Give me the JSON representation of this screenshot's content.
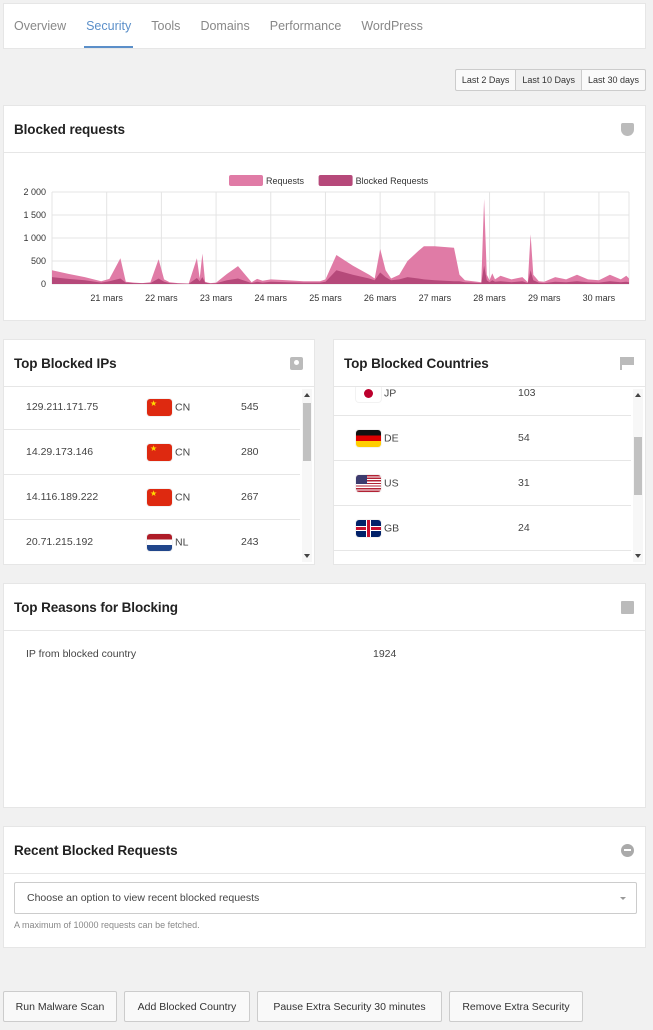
{
  "tabs": [
    {
      "label": "Overview",
      "active": false
    },
    {
      "label": "Security",
      "active": true
    },
    {
      "label": "Tools",
      "active": false
    },
    {
      "label": "Domains",
      "active": false
    },
    {
      "label": "Performance",
      "active": false
    },
    {
      "label": "WordPress",
      "active": false
    }
  ],
  "range": [
    "Last 2 Days",
    "Last 10 Days",
    "Last 30 days"
  ],
  "range_selected": "Last 10 Days",
  "blocked_requests": {
    "title": "Blocked requests",
    "icon": "shield-icon"
  },
  "chart_data": {
    "type": "area",
    "legend": [
      "Requests",
      "Blocked Requests"
    ],
    "legend_position": "top-center",
    "colors": {
      "Requests": "#e07ba6",
      "Blocked Requests": "#b6497a"
    },
    "ylim": [
      0,
      2000
    ],
    "y_ticks": [
      "2 000",
      "1 500",
      "1 000",
      "500",
      "0"
    ],
    "y_tick_values": [
      2000,
      1500,
      1000,
      500,
      0
    ],
    "x_tick_labels": [
      "21 mars",
      "22 mars",
      "23 mars",
      "24 mars",
      "25 mars",
      "26 mars",
      "27 mars",
      "28 mars",
      "29 mars",
      "30 mars"
    ],
    "x_range": [
      20.0,
      30.55
    ],
    "grid": true,
    "series": [
      {
        "name": "Requests",
        "x": [
          20.0,
          20.3,
          20.6,
          20.9,
          21.05,
          21.25,
          21.35,
          21.5,
          21.65,
          21.8,
          21.95,
          22.05,
          22.15,
          22.3,
          22.5,
          22.65,
          22.7,
          22.75,
          22.8,
          22.85,
          22.9,
          23.0,
          23.2,
          23.4,
          23.65,
          23.75,
          23.85,
          24.0,
          24.3,
          24.6,
          24.9,
          25.0,
          25.2,
          25.5,
          25.8,
          25.9,
          26.0,
          26.1,
          26.2,
          26.35,
          26.5,
          26.7,
          26.8,
          27.0,
          27.35,
          27.45,
          27.55,
          27.7,
          27.85,
          27.9,
          27.95,
          28.0,
          28.05,
          28.1,
          28.2,
          28.4,
          28.6,
          28.7,
          28.75,
          28.8,
          28.9,
          29.0,
          29.2,
          29.4,
          29.6,
          29.8,
          30.0,
          30.2,
          30.4,
          30.5,
          30.55
        ],
        "values": [
          300,
          220,
          150,
          60,
          110,
          560,
          50,
          30,
          20,
          40,
          540,
          100,
          40,
          20,
          10,
          560,
          120,
          660,
          50,
          30,
          20,
          30,
          220,
          390,
          40,
          110,
          70,
          100,
          80,
          60,
          60,
          100,
          630,
          400,
          200,
          120,
          760,
          300,
          120,
          200,
          500,
          720,
          820,
          820,
          790,
          200,
          80,
          60,
          40,
          1850,
          200,
          80,
          230,
          100,
          180,
          100,
          150,
          40,
          1080,
          200,
          60,
          50,
          150,
          100,
          200,
          100,
          80,
          200,
          100,
          180,
          120
        ]
      },
      {
        "name": "Blocked Requests",
        "x": [
          20.0,
          20.3,
          20.6,
          20.9,
          21.05,
          21.25,
          21.35,
          21.5,
          21.65,
          21.8,
          21.95,
          22.05,
          22.15,
          22.3,
          22.5,
          22.65,
          22.7,
          22.75,
          22.8,
          22.85,
          22.9,
          23.0,
          23.2,
          23.4,
          23.65,
          23.75,
          23.85,
          24.0,
          24.3,
          24.6,
          24.9,
          25.0,
          25.2,
          25.5,
          25.8,
          25.9,
          26.0,
          26.1,
          26.2,
          26.35,
          26.5,
          26.7,
          26.8,
          27.0,
          27.35,
          27.45,
          27.55,
          27.7,
          27.85,
          27.9,
          27.95,
          28.0,
          28.05,
          28.1,
          28.2,
          28.4,
          28.6,
          28.7,
          28.75,
          28.8,
          28.9,
          29.0,
          29.2,
          29.4,
          29.6,
          29.8,
          30.0,
          30.2,
          30.4,
          30.5,
          30.55
        ],
        "values": [
          150,
          110,
          80,
          30,
          60,
          120,
          30,
          20,
          15,
          20,
          120,
          50,
          20,
          10,
          5,
          130,
          60,
          150,
          30,
          20,
          10,
          15,
          80,
          120,
          20,
          50,
          30,
          50,
          40,
          30,
          30,
          50,
          300,
          200,
          120,
          80,
          250,
          150,
          80,
          100,
          150,
          120,
          100,
          80,
          60,
          60,
          40,
          30,
          20,
          400,
          80,
          40,
          80,
          50,
          60,
          40,
          60,
          20,
          300,
          80,
          30,
          20,
          50,
          40,
          60,
          40,
          30,
          60,
          40,
          50,
          40
        ]
      }
    ]
  },
  "top_ips": {
    "title": "Top Blocked IPs",
    "icon": "contact-card-icon",
    "rows": [
      {
        "ip": "129.211.171.75",
        "country": "CN",
        "count": "545"
      },
      {
        "ip": "14.29.173.146",
        "country": "CN",
        "count": "280"
      },
      {
        "ip": "14.116.189.222",
        "country": "CN",
        "count": "267"
      },
      {
        "ip": "20.71.215.192",
        "country": "NL",
        "count": "243"
      }
    ],
    "scroll_position": 0.05
  },
  "top_countries": {
    "title": "Top Blocked Countries",
    "icon": "flag-icon",
    "rows": [
      {
        "country": "JP",
        "count": "103"
      },
      {
        "country": "DE",
        "count": "54"
      },
      {
        "country": "US",
        "count": "31"
      },
      {
        "country": "GB",
        "count": "24"
      }
    ],
    "scroll_position": 0.45
  },
  "top_reasons": {
    "title": "Top Reasons for Blocking",
    "icon": "book-icon",
    "rows": [
      {
        "reason": "IP from blocked country",
        "count": "1924"
      }
    ]
  },
  "recent_requests": {
    "title": "Recent Blocked Requests",
    "icon": "minus-circle-icon",
    "select_placeholder": "Choose an option to view recent blocked requests",
    "hint": "A maximum of 10000 requests can be fetched."
  },
  "actions": [
    "Run Malware Scan",
    "Add Blocked Country",
    "Pause Extra Security 30 minutes",
    "Remove Extra Security"
  ]
}
